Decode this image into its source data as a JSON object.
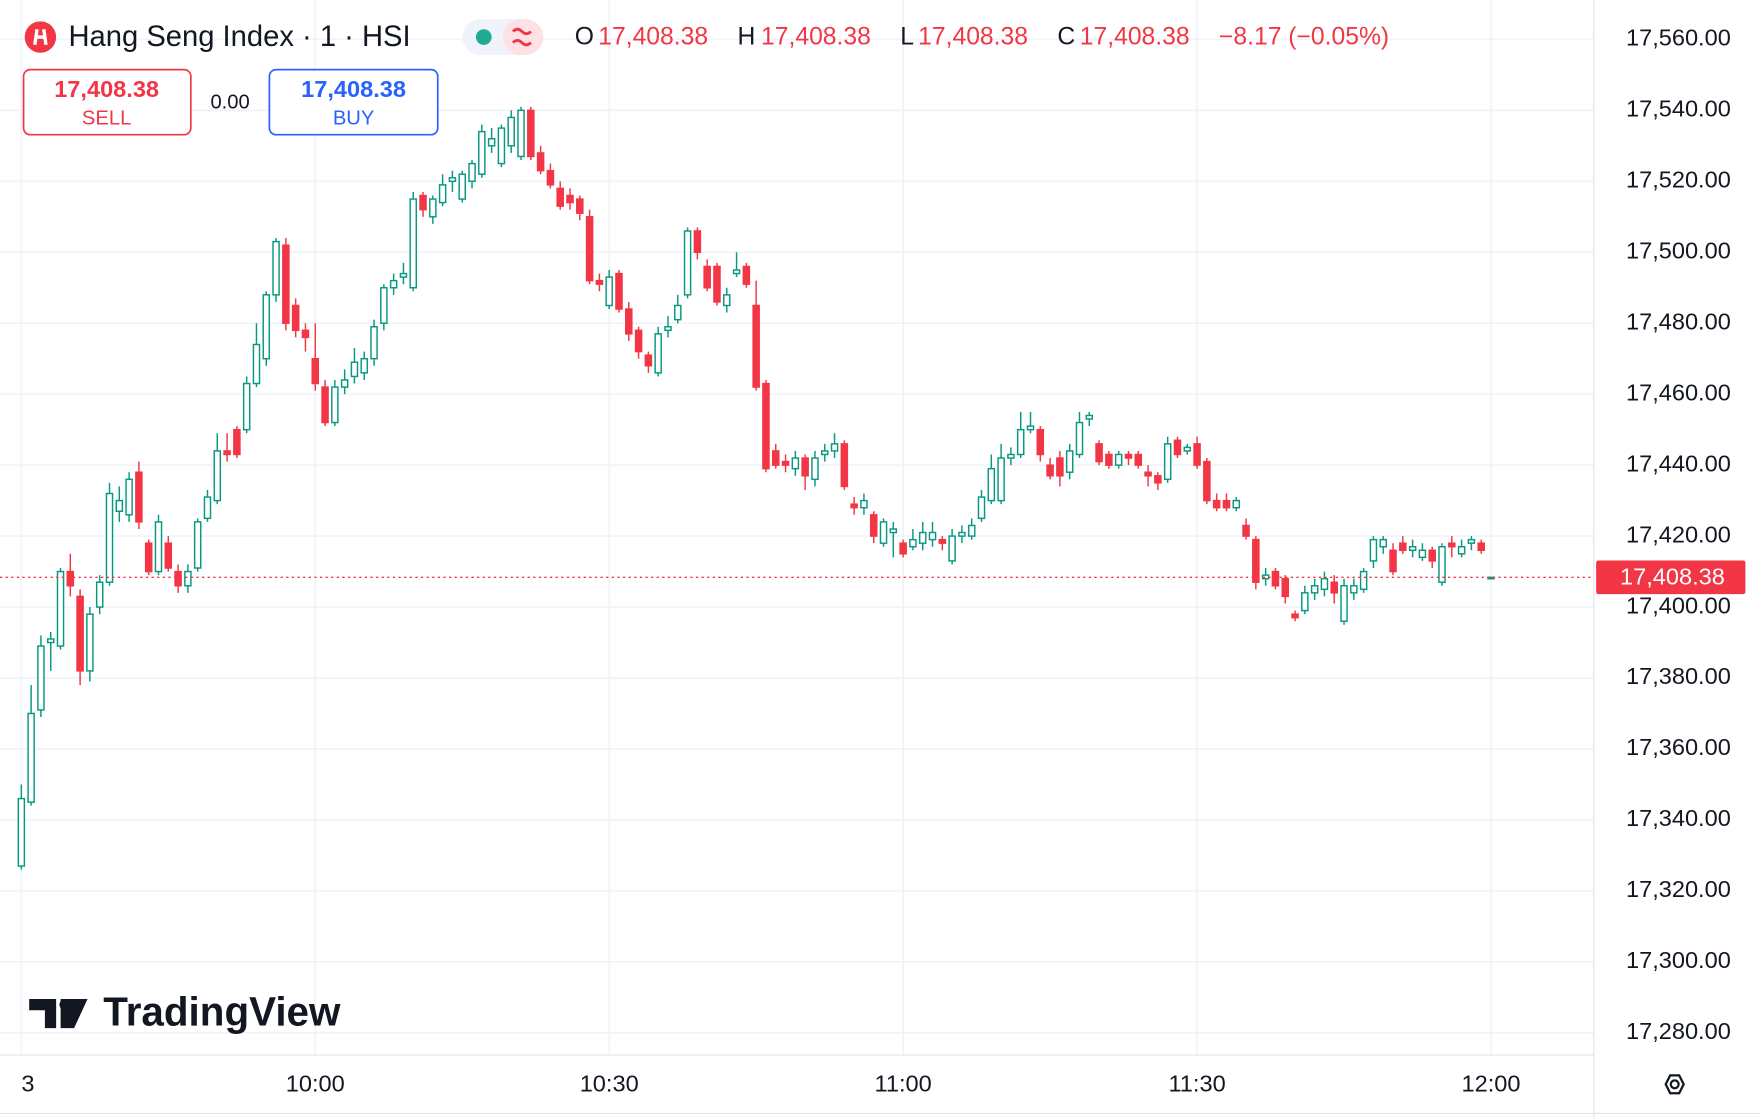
{
  "chart_data": {
    "type": "candlestick",
    "title": "Hang Seng Index · 1 · HSI",
    "ohlc_legend": [
      {
        "label": "O",
        "value": "17,408.38"
      },
      {
        "label": "H",
        "value": "17,408.38"
      },
      {
        "label": "L",
        "value": "17,408.38"
      },
      {
        "label": "C",
        "value": "17,408.38"
      }
    ],
    "change": "−8.17 (−0.05%)",
    "sell": {
      "price": "17,408.38",
      "label": "SELL"
    },
    "spread": "0.00",
    "buy": {
      "price": "17,408.38",
      "label": "BUY"
    },
    "watermark": "TradingView",
    "up_color": "#089981",
    "down_color": "#f23645",
    "grid": true,
    "open": [
      17327,
      17345,
      17371,
      17390,
      17389,
      17410,
      17403,
      17382,
      17400,
      17407,
      17427,
      17426,
      17438,
      17418,
      17410,
      17418,
      17410,
      17406,
      17411,
      17425,
      17430,
      17444,
      17450,
      17450,
      17463,
      17470,
      17488,
      17502,
      17485,
      17478,
      17470,
      17462,
      17452,
      17462,
      17465,
      17466,
      17470,
      17480,
      17490,
      17493,
      17490,
      17516,
      17510,
      17514,
      17520,
      17515,
      17520,
      17522,
      17530,
      17525,
      17530,
      17527,
      17540,
      17528,
      17523,
      17518,
      17516,
      17515,
      17510,
      17492,
      17485,
      17494,
      17484,
      17478,
      17471,
      17466,
      17478,
      17481,
      17488,
      17506,
      17496,
      17496,
      17485,
      17494,
      17496,
      17485,
      17463,
      17444,
      17441,
      17439,
      17442,
      17436,
      17443,
      17444,
      17446,
      17429,
      17428,
      17426,
      17418,
      17421,
      17418,
      17417,
      17418,
      17419,
      17419,
      17413,
      17420,
      17420,
      17425,
      17430,
      17430,
      17442,
      17443,
      17450,
      17450,
      17440,
      17442,
      17438,
      17443,
      17453,
      17446,
      17443,
      17440,
      17443,
      17443,
      17438,
      17437,
      17436,
      17447,
      17444,
      17446,
      17441,
      17430,
      17430,
      17428,
      17423,
      17419,
      17408,
      17410,
      17408,
      17398,
      17399,
      17404,
      17405,
      17407,
      17396,
      17404,
      17405,
      17413,
      17417,
      17416,
      17418,
      17416,
      17414,
      17416,
      17407,
      17418,
      17415,
      17418,
      17418,
      17408.38
    ],
    "high": [
      17350,
      17378,
      17392,
      17393,
      17411,
      17415,
      17405,
      17400,
      17409,
      17435,
      17434,
      17438,
      17441,
      17419,
      17426,
      17420,
      17412,
      17412,
      17425,
      17433,
      17449,
      17449,
      17451,
      17465,
      17480,
      17489,
      17504,
      17504,
      17487,
      17480,
      17480,
      17464,
      17464,
      17467,
      17473,
      17472,
      17481,
      17491,
      17494,
      17497,
      17517,
      17517,
      17516,
      17522,
      17523,
      17523,
      17526,
      17536,
      17535,
      17536,
      17540,
      17541,
      17541,
      17530,
      17525,
      17520,
      17518,
      17516,
      17512,
      17494,
      17495,
      17495,
      17486,
      17479,
      17472,
      17479,
      17482,
      17488,
      17507,
      17507,
      17498,
      17497,
      17490,
      17500,
      17497,
      17492,
      17464,
      17446,
      17443,
      17444,
      17443,
      17444,
      17446,
      17449,
      17447,
      17431,
      17432,
      17427,
      17425,
      17424,
      17419,
      17422,
      17424,
      17424,
      17420,
      17422,
      17423,
      17425,
      17433,
      17443,
      17446,
      17445,
      17455,
      17455,
      17451,
      17442,
      17444,
      17446,
      17455,
      17455,
      17447,
      17444,
      17444,
      17444,
      17444,
      17440,
      17438,
      17448,
      17448,
      17446,
      17448,
      17442,
      17432,
      17432,
      17431,
      17425,
      17420,
      17411,
      17411,
      17409,
      17399,
      17406,
      17408,
      17410,
      17409,
      17408,
      17408,
      17411,
      17420,
      17420,
      17418,
      17420,
      17419,
      17418,
      17417,
      17418,
      17420,
      17419,
      17420,
      17419,
      17408.38
    ],
    "low": [
      17326,
      17344,
      17369,
      17382,
      17388,
      17403,
      17378,
      17379,
      17398,
      17406,
      17424,
      17424,
      17422,
      17409,
      17409,
      17410,
      17404,
      17404,
      17410,
      17424,
      17429,
      17441,
      17442,
      17449,
      17462,
      17468,
      17486,
      17478,
      17476,
      17472,
      17461,
      17451,
      17451,
      17460,
      17463,
      17464,
      17468,
      17478,
      17488,
      17491,
      17489,
      17510,
      17508,
      17513,
      17517,
      17514,
      17518,
      17521,
      17528,
      17524,
      17528,
      17526,
      17526,
      17522,
      17518,
      17512,
      17512,
      17509,
      17491,
      17489,
      17484,
      17483,
      17475,
      17470,
      17466,
      17465,
      17476,
      17480,
      17487,
      17498,
      17489,
      17485,
      17483,
      17493,
      17490,
      17461,
      17438,
      17439,
      17438,
      17437,
      17433,
      17434,
      17441,
      17442,
      17433,
      17426,
      17426,
      17418,
      17417,
      17414,
      17414,
      17416,
      17416,
      17417,
      17416,
      17412,
      17418,
      17419,
      17424,
      17429,
      17429,
      17440,
      17442,
      17449,
      17441,
      17436,
      17434,
      17436,
      17442,
      17451,
      17440,
      17439,
      17439,
      17440,
      17439,
      17434,
      17433,
      17435,
      17442,
      17443,
      17439,
      17429,
      17427,
      17427,
      17427,
      17419,
      17405,
      17406,
      17405,
      17401,
      17396,
      17398,
      17402,
      17403,
      17401,
      17395,
      17402,
      17404,
      17411,
      17415,
      17409,
      17415,
      17414,
      17413,
      17411,
      17406,
      17414,
      17414,
      17416,
      17415,
      17408.38
    ],
    "close": [
      17346,
      17370,
      17389,
      17391,
      17410,
      17406,
      17382,
      17398,
      17407,
      17432,
      17430,
      17436,
      17424,
      17410,
      17424,
      17411,
      17406,
      17410,
      17424,
      17431,
      17444,
      17443,
      17443,
      17463,
      17474,
      17488,
      17503,
      17480,
      17478,
      17476,
      17463,
      17452,
      17462,
      17464,
      17469,
      17470,
      17479,
      17490,
      17492,
      17494,
      17515,
      17512,
      17515,
      17519,
      17521,
      17522,
      17525,
      17534,
      17532,
      17535,
      17538,
      17540,
      17527,
      17523,
      17519,
      17513,
      17514,
      17511,
      17492,
      17491,
      17493,
      17484,
      17477,
      17472,
      17468,
      17477,
      17479,
      17485,
      17506,
      17500,
      17490,
      17486,
      17488,
      17495,
      17491,
      17462,
      17439,
      17440,
      17440,
      17442,
      17437,
      17442,
      17444,
      17446,
      17434,
      17428,
      17430,
      17420,
      17424,
      17422,
      17415,
      17419,
      17421,
      17421,
      17418,
      17420,
      17421,
      17423,
      17431,
      17439,
      17442,
      17443,
      17450,
      17451,
      17443,
      17437,
      17437,
      17444,
      17452,
      17454,
      17441,
      17440,
      17443,
      17442,
      17440,
      17437,
      17435,
      17446,
      17443,
      17445,
      17440,
      17430,
      17428,
      17428,
      17430,
      17420,
      17407,
      17409,
      17406,
      17403,
      17397,
      17404,
      17406,
      17408,
      17404,
      17406,
      17406,
      17410,
      17419,
      17419,
      17410,
      17416,
      17417,
      17416,
      17413,
      17417,
      17417,
      17417,
      17419,
      17416,
      17408.38
    ],
    "xlim": [
      -1.26,
      160.5
    ],
    "xticks": [
      {
        "value": 0,
        "label": "3"
      },
      {
        "value": 30,
        "label": "10:00"
      },
      {
        "value": 60,
        "label": "10:30"
      },
      {
        "value": 90,
        "label": "11:00"
      },
      {
        "value": 120,
        "label": "11:30"
      },
      {
        "value": 150,
        "label": "12:00"
      }
    ],
    "ylim": [
      17273.7,
      17571.1
    ],
    "yticks": [
      {
        "value": 17280,
        "label": "17,280.00"
      },
      {
        "value": 17300,
        "label": "17,300.00"
      },
      {
        "value": 17320,
        "label": "17,320.00"
      },
      {
        "value": 17340,
        "label": "17,340.00"
      },
      {
        "value": 17360,
        "label": "17,360.00"
      },
      {
        "value": 17380,
        "label": "17,380.00"
      },
      {
        "value": 17400,
        "label": "17,400.00"
      },
      {
        "value": 17420,
        "label": "17,420.00"
      },
      {
        "value": 17440,
        "label": "17,440.00"
      },
      {
        "value": 17460,
        "label": "17,460.00"
      },
      {
        "value": 17480,
        "label": "17,480.00"
      },
      {
        "value": 17500,
        "label": "17,500.00"
      },
      {
        "value": 17520,
        "label": "17,520.00"
      },
      {
        "value": 17540,
        "label": "17,540.00"
      },
      {
        "value": 17560,
        "label": "17,560.00"
      }
    ],
    "last_price": {
      "value": 17408.38,
      "label": "17,408.38"
    }
  }
}
